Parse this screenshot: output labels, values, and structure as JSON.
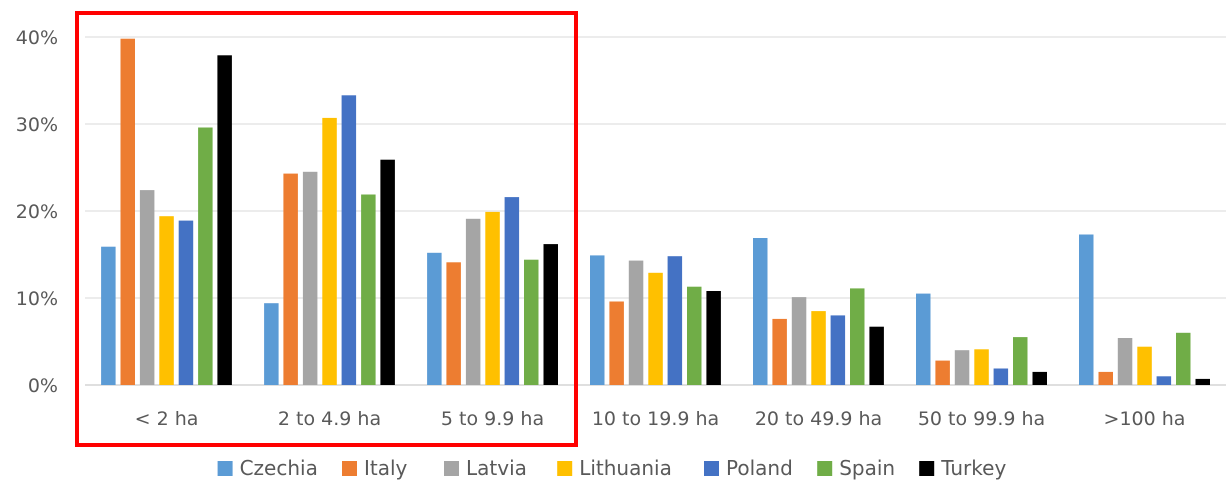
{
  "chart_data": {
    "type": "bar",
    "title": "",
    "xlabel": "",
    "ylabel": "",
    "categories": [
      "< 2 ha",
      "2 to 4.9 ha",
      "5 to 9.9 ha",
      "10 to 19.9 ha",
      "20 to 49.9 ha",
      "50 to 99.9 ha",
      ">100 ha"
    ],
    "ylim": [
      0,
      40
    ],
    "yticks": [
      0,
      10,
      20,
      30,
      40
    ],
    "ytick_labels": [
      "0%",
      "10%",
      "20%",
      "30%",
      "40%"
    ],
    "value_unit": "%",
    "grid": "horizontal",
    "legend_position": "bottom",
    "series": [
      {
        "name": "Czechia",
        "color": "#5b9bd5",
        "values": [
          15.9,
          9.4,
          15.2,
          14.9,
          16.9,
          10.5,
          17.3
        ]
      },
      {
        "name": "Italy",
        "color": "#ed7d31",
        "values": [
          39.8,
          24.3,
          14.1,
          9.6,
          7.6,
          2.8,
          1.5
        ]
      },
      {
        "name": "Latvia",
        "color": "#a5a5a5",
        "values": [
          22.4,
          24.5,
          19.1,
          14.3,
          10.1,
          4.0,
          5.4
        ]
      },
      {
        "name": "Lithuania",
        "color": "#ffc000",
        "values": [
          19.4,
          30.7,
          19.9,
          12.9,
          8.5,
          4.1,
          4.4
        ]
      },
      {
        "name": "Poland",
        "color": "#4472c4",
        "values": [
          18.9,
          33.3,
          21.6,
          14.8,
          8.0,
          1.9,
          1.0
        ]
      },
      {
        "name": "Spain",
        "color": "#70ad47",
        "values": [
          29.6,
          21.9,
          14.4,
          11.3,
          11.1,
          5.5,
          6.0
        ]
      },
      {
        "name": "Turkey",
        "color": "#000000",
        "values": [
          37.9,
          25.9,
          16.2,
          10.8,
          6.7,
          1.5,
          0.7
        ]
      }
    ],
    "annotations": [
      {
        "type": "highlight-box",
        "color": "#ff0000",
        "categories": [
          "< 2 ha",
          "2 to 4.9 ha",
          "5 to 9.9 ha"
        ]
      }
    ]
  }
}
